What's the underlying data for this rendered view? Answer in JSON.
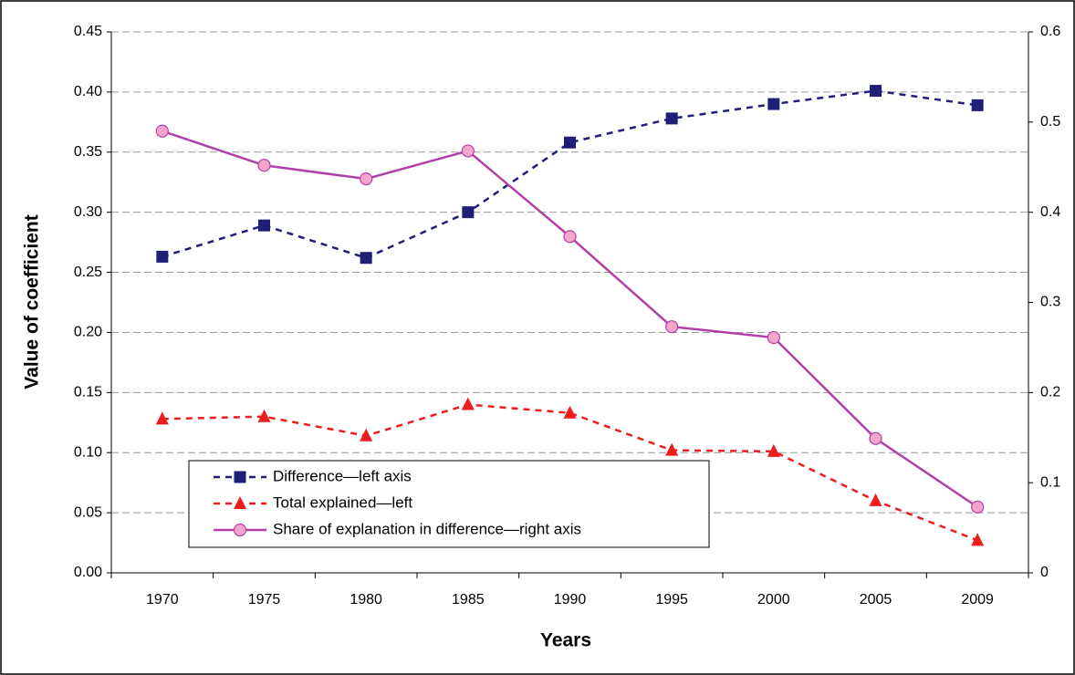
{
  "chart_data": {
    "type": "line",
    "x_label": "Years",
    "y_label": "Value of coefficient",
    "categories": [
      "1970",
      "1975",
      "1980",
      "1985",
      "1990",
      "1995",
      "2000",
      "2005",
      "2009"
    ],
    "series": [
      {
        "name": "Difference—left axis",
        "color": "#1f1f78",
        "marker": "square",
        "dashed": true,
        "axis": "y",
        "values": [
          0.263,
          0.289,
          0.262,
          0.3,
          0.358,
          0.378,
          0.39,
          0.401,
          0.389
        ]
      },
      {
        "name": "Total explained—left",
        "color": "#ee1c1c",
        "marker": "triangle",
        "dashed": true,
        "axis": "y",
        "values": [
          0.128,
          0.13,
          0.114,
          0.14,
          0.133,
          0.102,
          0.101,
          0.06,
          0.027
        ]
      },
      {
        "name": "Share of explanation in difference—right axis",
        "color": "#b040a8",
        "marker": "circle",
        "marker_color": "#f4a6cc",
        "dashed": false,
        "axis": "y2",
        "values": [
          0.49,
          0.452,
          0.437,
          0.468,
          0.373,
          0.273,
          0.261,
          0.149,
          0.073
        ]
      }
    ],
    "ylim": [
      0,
      0.45
    ],
    "yticks": [
      {
        "value": 0,
        "label": "0.00"
      },
      {
        "value": 0.05,
        "label": "0.05"
      },
      {
        "value": 0.1,
        "label": "0.10"
      },
      {
        "value": 0.15,
        "label": "0.15"
      },
      {
        "value": 0.2,
        "label": "0.20"
      },
      {
        "value": 0.25,
        "label": "0.25"
      },
      {
        "value": 0.3,
        "label": "0.30"
      },
      {
        "value": 0.35,
        "label": "0.35"
      },
      {
        "value": 0.4,
        "label": "0.40"
      },
      {
        "value": 0.45,
        "label": "0.45"
      }
    ],
    "y2lim": [
      0,
      0.6
    ],
    "y2ticks": [
      0,
      0.1,
      0.2,
      0.3,
      0.4,
      0.5,
      0.6
    ],
    "grid": true,
    "legend": "lower left"
  }
}
